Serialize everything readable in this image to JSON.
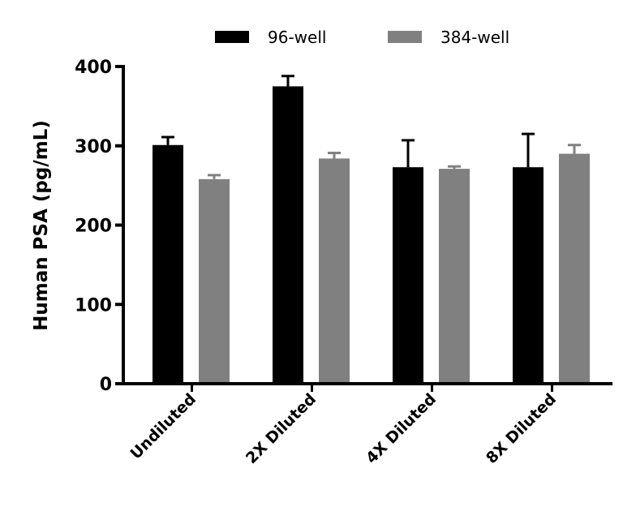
{
  "chart_data": {
    "type": "bar",
    "title": "",
    "xlabel": "",
    "ylabel": "Human PSA (pg/mL)",
    "ylim": [
      0,
      400
    ],
    "yticks": [
      "0",
      "100",
      "200",
      "300",
      "400"
    ],
    "grid": false,
    "legend_position": "top",
    "categories": [
      "Undiluted",
      "2X Diluted",
      "4X Diluted",
      "8X Diluted"
    ],
    "series": [
      {
        "name": "96-well",
        "color": "#000000",
        "values": [
          301,
          375,
          273,
          273
        ],
        "error_upper": [
          311,
          388,
          307,
          315
        ]
      },
      {
        "name": "384-well",
        "color": "#808080",
        "values": [
          258,
          284,
          271,
          290
        ],
        "error_upper": [
          263,
          291,
          274,
          301
        ]
      }
    ]
  }
}
